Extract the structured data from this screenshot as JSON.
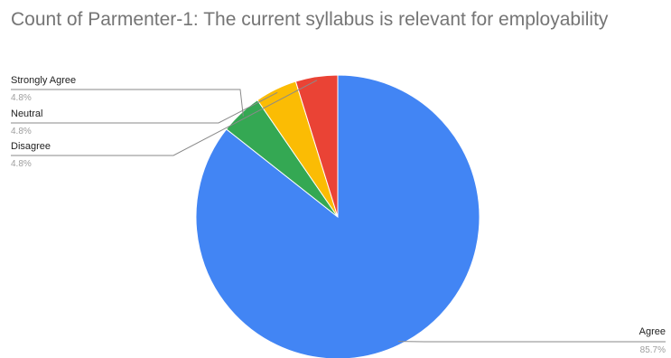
{
  "chart_data": {
    "type": "pie",
    "title": "Count of Parmenter-1: The current syllabus is relevant for employability",
    "slices": [
      {
        "label": "Agree",
        "value": 85.7,
        "display": "85.7%",
        "color": "#4285f4"
      },
      {
        "label": "Strongly Agree",
        "value": 4.8,
        "display": "4.8%",
        "color": "#34a853"
      },
      {
        "label": "Neutral",
        "value": 4.8,
        "display": "4.8%",
        "color": "#fbbc04"
      },
      {
        "label": "Disagree",
        "value": 4.8,
        "display": "4.8%",
        "color": "#ea4335"
      }
    ],
    "legend": "none",
    "label_style": "callouts"
  }
}
